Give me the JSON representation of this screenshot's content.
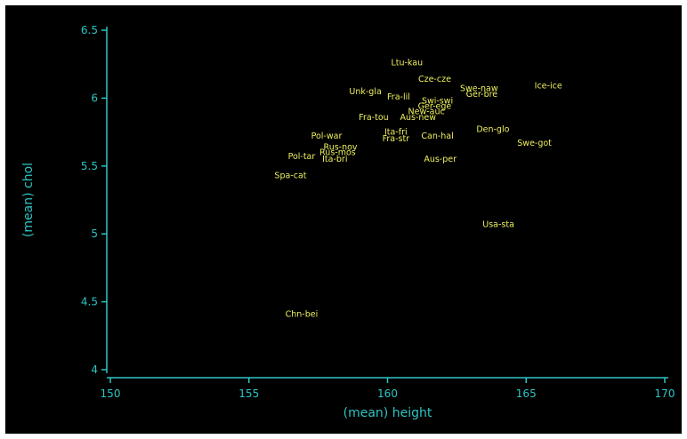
{
  "chart_data": {
    "type": "scatter",
    "xlabel": "(mean) height",
    "ylabel": "(mean) chol",
    "xlim": [
      150,
      170
    ],
    "ylim": [
      4,
      6.5
    ],
    "xticks": [
      150,
      155,
      160,
      165,
      170
    ],
    "yticks": [
      4,
      4.5,
      5,
      5.5,
      6,
      6.5
    ],
    "xtick_labels": [
      "150",
      "155",
      "160",
      "165",
      "170"
    ],
    "ytick_labels": [
      "4",
      "4.5",
      "5",
      "5.5",
      "6",
      "6.5"
    ],
    "grid": false,
    "marker": "label-only",
    "label_color": "#f0f060",
    "axis_color": "#2ec4c4",
    "background": "#000000",
    "points": [
      {
        "label": "Ltu-kau",
        "x": 160.7,
        "y": 6.26
      },
      {
        "label": "Cze-cze",
        "x": 161.7,
        "y": 6.14
      },
      {
        "label": "Swe-naw",
        "x": 163.3,
        "y": 6.07
      },
      {
        "label": "Ger-bre",
        "x": 163.4,
        "y": 6.03
      },
      {
        "label": "Ice-ice",
        "x": 165.8,
        "y": 6.09
      },
      {
        "label": "Unk-gla",
        "x": 159.2,
        "y": 6.05
      },
      {
        "label": "Fra-lil",
        "x": 160.4,
        "y": 6.01
      },
      {
        "label": "Swi-swi",
        "x": 161.8,
        "y": 5.98
      },
      {
        "label": "Ger-ege",
        "x": 161.7,
        "y": 5.94
      },
      {
        "label": "New-auc",
        "x": 161.4,
        "y": 5.9
      },
      {
        "label": "Fra-tou",
        "x": 159.5,
        "y": 5.86
      },
      {
        "label": "Aus-new",
        "x": 161.1,
        "y": 5.86
      },
      {
        "label": "Den-glo",
        "x": 163.8,
        "y": 5.77
      },
      {
        "label": "Ita-fri",
        "x": 160.3,
        "y": 5.75
      },
      {
        "label": "Can-hal",
        "x": 161.8,
        "y": 5.72
      },
      {
        "label": "Fra-str",
        "x": 160.3,
        "y": 5.7
      },
      {
        "label": "Swe-got",
        "x": 165.3,
        "y": 5.67
      },
      {
        "label": "Pol-war",
        "x": 157.8,
        "y": 5.72
      },
      {
        "label": "Rus-nov",
        "x": 158.3,
        "y": 5.64
      },
      {
        "label": "Rus-mos",
        "x": 158.2,
        "y": 5.6
      },
      {
        "label": "Pol-tar",
        "x": 156.9,
        "y": 5.57
      },
      {
        "label": "Ita-bri",
        "x": 158.1,
        "y": 5.55
      },
      {
        "label": "Aus-per",
        "x": 161.9,
        "y": 5.55
      },
      {
        "label": "Spa-cat",
        "x": 156.5,
        "y": 5.43
      },
      {
        "label": "Usa-sta",
        "x": 164.0,
        "y": 5.07
      },
      {
        "label": "Chn-bei",
        "x": 156.9,
        "y": 4.41
      }
    ]
  }
}
